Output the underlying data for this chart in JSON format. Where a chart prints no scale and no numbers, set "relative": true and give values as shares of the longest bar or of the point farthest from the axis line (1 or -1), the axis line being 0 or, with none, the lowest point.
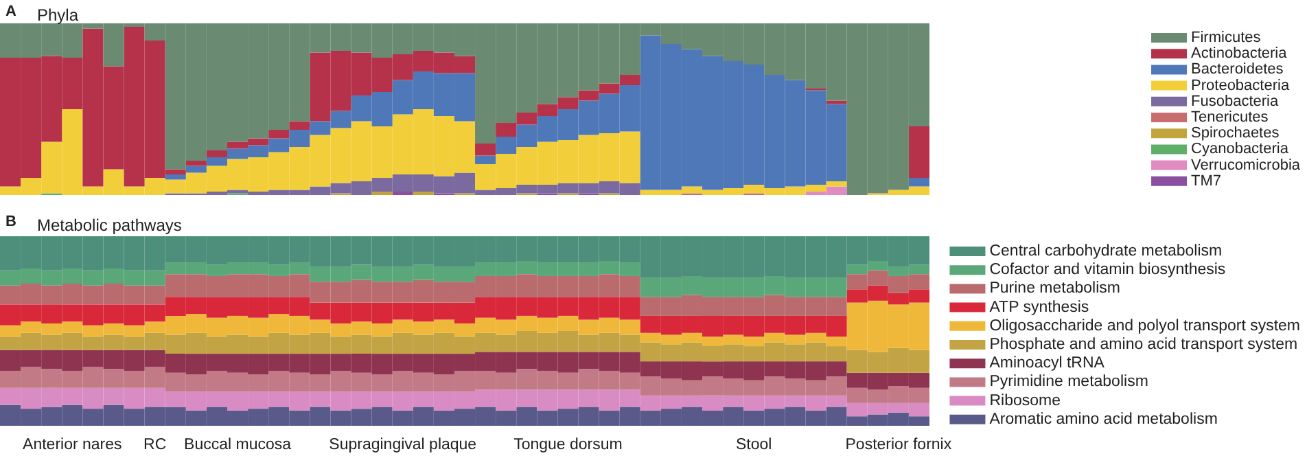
{
  "chart_data": [
    {
      "type": "bar",
      "title": "Phyla",
      "annotations": [
        "A"
      ],
      "relative": true,
      "stacked": true,
      "grid": false,
      "legend": "right",
      "categories": [
        null,
        null,
        null,
        null,
        null,
        null,
        null,
        null,
        null,
        null,
        null,
        null,
        null,
        null,
        null,
        null,
        null,
        null,
        null,
        null,
        null,
        null,
        null,
        null,
        null,
        null,
        null,
        null,
        null,
        null,
        null,
        null,
        null,
        null,
        null,
        null,
        null,
        null,
        null,
        null,
        null,
        null,
        null,
        null,
        null
      ],
      "series": [
        {
          "name": "TM7",
          "color": "#8a4fa0",
          "values": [
            0,
            0,
            0,
            0,
            0,
            0,
            0,
            0,
            0,
            0,
            0,
            0,
            0,
            0,
            0,
            0,
            0,
            0,
            0,
            0.02,
            0,
            0.01,
            0,
            0,
            0,
            0,
            0.01,
            0,
            0.01,
            0,
            0,
            0,
            0,
            0,
            0,
            0,
            0,
            0,
            0,
            0,
            0,
            0,
            0,
            0,
            0
          ]
        },
        {
          "name": "Verrucomicrobia",
          "color": "#e08cc0",
          "values": [
            0,
            0,
            0,
            0,
            0,
            0,
            0,
            0,
            0,
            0,
            0,
            0,
            0,
            0,
            0,
            0,
            0,
            0,
            0,
            0,
            0,
            0,
            0,
            0,
            0,
            0,
            0,
            0,
            0,
            0,
            0,
            0,
            0,
            0,
            0,
            0,
            0,
            0,
            0,
            0.02,
            0.05,
            0,
            0,
            0,
            0
          ]
        },
        {
          "name": "Cyanobacteria",
          "color": "#5fae6a",
          "values": [
            0,
            0,
            0.01,
            0,
            0,
            0,
            0,
            0,
            0,
            0,
            0,
            0.01,
            0,
            0,
            0,
            0,
            0,
            0,
            0,
            0,
            0,
            0,
            0,
            0,
            0,
            0,
            0,
            0,
            0,
            0,
            0,
            0,
            0,
            0,
            0,
            0,
            0,
            0,
            0,
            0,
            0,
            0,
            0,
            0,
            0
          ]
        },
        {
          "name": "Spirochaetes",
          "color": "#c2a43c",
          "values": [
            0,
            0,
            0,
            0,
            0,
            0,
            0,
            0,
            0,
            0,
            0,
            0,
            0,
            0,
            0,
            0,
            0.01,
            0,
            0.02,
            0,
            0.02,
            0,
            0.01,
            0,
            0,
            0.01,
            0,
            0.01,
            0,
            0.01,
            0,
            0,
            0,
            0,
            0,
            0,
            0,
            0,
            0,
            0,
            0,
            0,
            0,
            0,
            0
          ]
        },
        {
          "name": "Tenericutes",
          "color": "#c86d6d",
          "values": [
            0,
            0,
            0,
            0,
            0,
            0,
            0,
            0,
            0,
            0,
            0,
            0,
            0,
            0,
            0,
            0,
            0,
            0,
            0,
            0,
            0,
            0,
            0,
            0,
            0,
            0,
            0,
            0,
            0,
            0,
            0,
            0,
            0,
            0.01,
            0,
            0,
            0.01,
            0,
            0,
            0,
            0,
            0,
            0,
            0,
            0
          ]
        },
        {
          "name": "Fusobacteria",
          "color": "#7a6aa0",
          "values": [
            0,
            0,
            0,
            0,
            0,
            0,
            0,
            0,
            0.01,
            0.01,
            0.02,
            0.02,
            0.02,
            0.03,
            0.03,
            0.05,
            0.06,
            0.08,
            0.08,
            0.1,
            0.1,
            0.1,
            0.12,
            0.03,
            0.04,
            0.05,
            0.05,
            0.06,
            0.06,
            0.07,
            0.07,
            0,
            0,
            0,
            0,
            0,
            0,
            0,
            0,
            0,
            0,
            0,
            0,
            0,
            0
          ]
        },
        {
          "name": "Proteobacteria",
          "color": "#f2cf3a",
          "values": [
            0.05,
            0.1,
            0.3,
            0.5,
            0.05,
            0.15,
            0.05,
            0.1,
            0.08,
            0.12,
            0.15,
            0.18,
            0.2,
            0.22,
            0.25,
            0.3,
            0.32,
            0.35,
            0.3,
            0.35,
            0.38,
            0.35,
            0.3,
            0.15,
            0.2,
            0.22,
            0.25,
            0.25,
            0.28,
            0.28,
            0.3,
            0.03,
            0.03,
            0.04,
            0.03,
            0.04,
            0.05,
            0.04,
            0.05,
            0.04,
            0.03,
            0,
            0.01,
            0.03,
            0.05
          ]
        },
        {
          "name": "Bacteroidetes",
          "color": "#4f78b8",
          "values": [
            0,
            0,
            0,
            0,
            0,
            0,
            0,
            0,
            0.03,
            0.04,
            0.05,
            0.06,
            0.07,
            0.08,
            0.1,
            0.08,
            0.1,
            0.15,
            0.2,
            0.2,
            0.22,
            0.25,
            0.28,
            0.05,
            0.1,
            0.13,
            0.15,
            0.18,
            0.2,
            0.23,
            0.27,
            0.9,
            0.85,
            0.8,
            0.78,
            0.74,
            0.7,
            0.66,
            0.62,
            0.55,
            0.45,
            0,
            0,
            0,
            0.05
          ]
        },
        {
          "name": "Actinobacteria",
          "color": "#b5324a",
          "values": [
            0.75,
            0.7,
            0.5,
            0.3,
            0.92,
            0.6,
            0.93,
            0.8,
            0.03,
            0.03,
            0.04,
            0.04,
            0.04,
            0.05,
            0.05,
            0.4,
            0.35,
            0.25,
            0.2,
            0.15,
            0.12,
            0.12,
            0.1,
            0.07,
            0.08,
            0.07,
            0.07,
            0.07,
            0.06,
            0.06,
            0.06,
            0,
            0,
            0,
            0,
            0,
            0,
            0,
            0,
            0.01,
            0.02,
            0,
            0,
            0,
            0.3
          ]
        },
        {
          "name": "Firmicutes",
          "color": "#6b8a72",
          "values": [
            0.2,
            0.2,
            0.19,
            0.2,
            0.03,
            0.25,
            0.02,
            0.1,
            0.85,
            0.8,
            0.74,
            0.69,
            0.67,
            0.62,
            0.57,
            0.17,
            0.16,
            0.17,
            0.2,
            0.18,
            0.16,
            0.17,
            0.19,
            0.7,
            0.58,
            0.52,
            0.47,
            0.43,
            0.39,
            0.35,
            0.3,
            0.07,
            0.12,
            0.15,
            0.19,
            0.22,
            0.24,
            0.3,
            0.33,
            0.38,
            0.45,
            1,
            0.99,
            0.97,
            0.6
          ]
        }
      ]
    },
    {
      "type": "bar",
      "title": "Metabolic pathways",
      "annotations": [
        "B"
      ],
      "relative": true,
      "stacked": true,
      "grid": false,
      "legend": "right",
      "categories": [
        null,
        null,
        null,
        "Anterior nares",
        null,
        null,
        null,
        "RC",
        null,
        null,
        null,
        "Buccal mucosa",
        null,
        null,
        null,
        null,
        null,
        null,
        null,
        "Supragingival plaque",
        null,
        null,
        null,
        null,
        null,
        null,
        null,
        "Tongue dorsum",
        null,
        null,
        null,
        null,
        null,
        null,
        null,
        null,
        "Stool",
        null,
        null,
        null,
        null,
        null,
        null,
        "Posterior fornix",
        null
      ],
      "series": [
        {
          "name": "Aromatic amino acid metabolism",
          "color": "#5a5a8a",
          "values": [
            0.11,
            0.09,
            0.1,
            0.11,
            0.09,
            0.11,
            0.09,
            0.1,
            0.1,
            0.08,
            0.1,
            0.08,
            0.09,
            0.1,
            0.08,
            0.1,
            0.08,
            0.09,
            0.1,
            0.08,
            0.1,
            0.08,
            0.09,
            0.1,
            0.08,
            0.1,
            0.08,
            0.09,
            0.1,
            0.08,
            0.1,
            0.08,
            0.09,
            0.1,
            0.08,
            0.1,
            0.08,
            0.09,
            0.1,
            0.08,
            0.1,
            0.05,
            0.06,
            0.07,
            0.05
          ]
        },
        {
          "name": "Ribosome",
          "color": "#d98cc4",
          "values": [
            0.09,
            0.11,
            0.1,
            0.09,
            0.11,
            0.09,
            0.11,
            0.1,
            0.08,
            0.1,
            0.08,
            0.1,
            0.09,
            0.08,
            0.1,
            0.08,
            0.1,
            0.09,
            0.08,
            0.1,
            0.08,
            0.1,
            0.09,
            0.09,
            0.11,
            0.09,
            0.11,
            0.1,
            0.09,
            0.11,
            0.09,
            0.08,
            0.07,
            0.06,
            0.08,
            0.06,
            0.08,
            0.07,
            0.06,
            0.08,
            0.06,
            0.07,
            0.06,
            0.05,
            0.07
          ]
        },
        {
          "name": "Pyrimidine metabolism",
          "color": "#c27a86",
          "values": [
            0.09,
            0.11,
            0.1,
            0.09,
            0.11,
            0.1,
            0.09,
            0.11,
            0.1,
            0.09,
            0.11,
            0.1,
            0.09,
            0.11,
            0.1,
            0.09,
            0.11,
            0.1,
            0.09,
            0.11,
            0.1,
            0.09,
            0.11,
            0.1,
            0.09,
            0.11,
            0.1,
            0.09,
            0.11,
            0.1,
            0.09,
            0.1,
            0.09,
            0.08,
            0.1,
            0.09,
            0.08,
            0.1,
            0.09,
            0.08,
            0.1,
            0.08,
            0.07,
            0.09,
            0.08
          ]
        },
        {
          "name": "Aminoacyl tRNA",
          "color": "#8e3350",
          "values": [
            0.11,
            0.09,
            0.1,
            0.11,
            0.09,
            0.1,
            0.11,
            0.09,
            0.1,
            0.11,
            0.09,
            0.1,
            0.11,
            0.09,
            0.1,
            0.11,
            0.09,
            0.1,
            0.11,
            0.09,
            0.1,
            0.11,
            0.09,
            0.1,
            0.11,
            0.09,
            0.1,
            0.11,
            0.09,
            0.1,
            0.11,
            0.08,
            0.09,
            0.1,
            0.08,
            0.09,
            0.1,
            0.08,
            0.09,
            0.1,
            0.08,
            0.08,
            0.09,
            0.07,
            0.08
          ]
        },
        {
          "name": "Phosphate and amino acid transport system",
          "color": "#c2a444",
          "values": [
            0.07,
            0.09,
            0.08,
            0.09,
            0.07,
            0.08,
            0.07,
            0.09,
            0.1,
            0.11,
            0.09,
            0.1,
            0.09,
            0.11,
            0.1,
            0.11,
            0.09,
            0.1,
            0.09,
            0.11,
            0.1,
            0.11,
            0.09,
            0.1,
            0.09,
            0.11,
            0.1,
            0.11,
            0.09,
            0.1,
            0.09,
            0.1,
            0.09,
            0.1,
            0.08,
            0.09,
            0.08,
            0.1,
            0.09,
            0.1,
            0.08,
            0.12,
            0.11,
            0.13,
            0.12
          ]
        },
        {
          "name": "Oligosaccharide and polyol transport system",
          "color": "#f0b83a",
          "values": [
            0.06,
            0.06,
            0.06,
            0.06,
            0.06,
            0.06,
            0.06,
            0.06,
            0.1,
            0.1,
            0.1,
            0.1,
            0.1,
            0.1,
            0.1,
            0.07,
            0.07,
            0.07,
            0.07,
            0.07,
            0.07,
            0.07,
            0.07,
            0.08,
            0.08,
            0.08,
            0.08,
            0.08,
            0.08,
            0.08,
            0.08,
            0.05,
            0.05,
            0.05,
            0.05,
            0.05,
            0.05,
            0.05,
            0.05,
            0.05,
            0.05,
            0.25,
            0.27,
            0.23,
            0.25
          ]
        },
        {
          "name": "ATP synthesis",
          "color": "#d8283a",
          "values": [
            0.11,
            0.09,
            0.1,
            0.09,
            0.11,
            0.1,
            0.11,
            0.09,
            0.1,
            0.09,
            0.11,
            0.1,
            0.11,
            0.09,
            0.1,
            0.09,
            0.11,
            0.1,
            0.11,
            0.09,
            0.1,
            0.09,
            0.11,
            0.11,
            0.12,
            0.1,
            0.11,
            0.1,
            0.12,
            0.11,
            0.12,
            0.09,
            0.1,
            0.09,
            0.11,
            0.1,
            0.11,
            0.09,
            0.1,
            0.09,
            0.11,
            0.07,
            0.08,
            0.06,
            0.07
          ]
        },
        {
          "name": "Purine metabolism",
          "color": "#b96b6e",
          "values": [
            0.1,
            0.11,
            0.1,
            0.11,
            0.1,
            0.11,
            0.1,
            0.1,
            0.12,
            0.12,
            0.11,
            0.12,
            0.12,
            0.11,
            0.12,
            0.11,
            0.11,
            0.12,
            0.11,
            0.11,
            0.12,
            0.11,
            0.11,
            0.11,
            0.11,
            0.12,
            0.11,
            0.11,
            0.11,
            0.12,
            0.11,
            0.1,
            0.1,
            0.11,
            0.1,
            0.1,
            0.1,
            0.11,
            0.1,
            0.1,
            0.1,
            0.08,
            0.08,
            0.09,
            0.08
          ]
        },
        {
          "name": "Cofactor and vitamin biosynthesis",
          "color": "#5aa77a",
          "values": [
            0.08,
            0.08,
            0.08,
            0.08,
            0.08,
            0.08,
            0.08,
            0.08,
            0.06,
            0.06,
            0.06,
            0.06,
            0.06,
            0.06,
            0.06,
            0.08,
            0.08,
            0.08,
            0.08,
            0.08,
            0.08,
            0.08,
            0.08,
            0.07,
            0.07,
            0.07,
            0.07,
            0.07,
            0.07,
            0.07,
            0.07,
            0.1,
            0.1,
            0.1,
            0.1,
            0.1,
            0.1,
            0.1,
            0.1,
            0.1,
            0.1,
            0.05,
            0.05,
            0.05,
            0.05
          ]
        },
        {
          "name": "Central carbohydrate metabolism",
          "color": "#4e8f7c",
          "values": [
            0.18,
            0.17,
            0.18,
            0.17,
            0.18,
            0.17,
            0.18,
            0.18,
            0.14,
            0.14,
            0.15,
            0.14,
            0.14,
            0.15,
            0.14,
            0.16,
            0.16,
            0.15,
            0.16,
            0.16,
            0.15,
            0.16,
            0.16,
            0.14,
            0.14,
            0.13,
            0.14,
            0.14,
            0.14,
            0.13,
            0.14,
            0.22,
            0.22,
            0.21,
            0.22,
            0.22,
            0.22,
            0.21,
            0.22,
            0.22,
            0.22,
            0.15,
            0.13,
            0.16,
            0.15
          ]
        }
      ]
    }
  ]
}
